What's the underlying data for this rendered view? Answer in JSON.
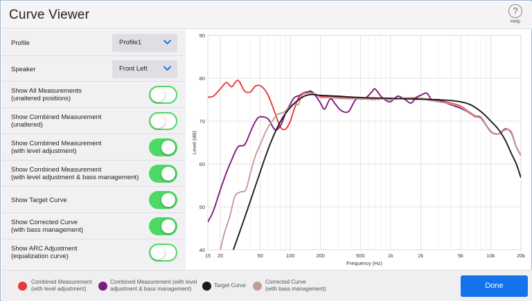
{
  "window": {
    "title": "Curve Viewer",
    "help_icon": "?",
    "help_label": "Help"
  },
  "settings": {
    "profile": {
      "label": "Profile",
      "value": "Profile1"
    },
    "speaker": {
      "label": "Speaker",
      "value": "Front Left"
    },
    "toggles": [
      {
        "line1": "Show All Measurements",
        "line2": "(unaltered  positions)",
        "on": false
      },
      {
        "line1": "Show Combined Measurement",
        "line2": "(unaltered)",
        "on": false
      },
      {
        "line1": "Show Combined Measurement",
        "line2": "(with level adjustment)",
        "on": true
      },
      {
        "line1": "Show Combined Measurement",
        "line2": "(with level adjustment & bass management)",
        "on": true
      },
      {
        "line1": "Show Target Curve",
        "line2": "",
        "on": true
      },
      {
        "line1": "Show Corrected Curve",
        "line2": "(with bass management)",
        "on": true
      },
      {
        "line1": "Show ARC Adjustment",
        "line2": "(equalization curve)",
        "on": false
      }
    ]
  },
  "colors": {
    "accent": "#1273ea",
    "toggle_on": "#4cd964",
    "red": "#e8383d",
    "purple": "#7d1b7e",
    "black": "#1a1a1a",
    "tan": "#c49a97"
  },
  "legend": [
    {
      "line1": "Combined Measurement",
      "line2": "(with level adjustment)",
      "color": "#e8383d"
    },
    {
      "line1": "Combined Measurement (with level",
      "line2": "adjustment & bass management)",
      "color": "#7d1b7e"
    },
    {
      "line1": "Target Curve",
      "line2": "",
      "color": "#1a1a1a"
    },
    {
      "line1": "Corrected Curve",
      "line2": "(with bass management)",
      "color": "#c49a97"
    }
  ],
  "done_label": "Done",
  "chart_data": {
    "type": "line",
    "xlabel": "Frequency (Hz)",
    "ylabel": "Level (dB)",
    "xscale": "log",
    "xlim": [
      15,
      20000
    ],
    "ylim": [
      40,
      90
    ],
    "grid": true,
    "x_ticks": [
      {
        "value": 15,
        "label": "15"
      },
      {
        "value": 20,
        "label": "20"
      },
      {
        "value": 50,
        "label": "50"
      },
      {
        "value": 100,
        "label": "100"
      },
      {
        "value": 200,
        "label": "200"
      },
      {
        "value": 500,
        "label": "500"
      },
      {
        "value": 1000,
        "label": "1k"
      },
      {
        "value": 2000,
        "label": "2k"
      },
      {
        "value": 5000,
        "label": "5k"
      },
      {
        "value": 10000,
        "label": "10k"
      },
      {
        "value": 20000,
        "label": "20k"
      }
    ],
    "y_ticks": [
      40,
      50,
      60,
      70,
      80,
      90
    ],
    "series": [
      {
        "name": "Combined Measurement (with level adjustment)",
        "color": "#e8383d",
        "points": [
          [
            15,
            75.6
          ],
          [
            17,
            75.8
          ],
          [
            20,
            77.5
          ],
          [
            23,
            79
          ],
          [
            26,
            78
          ],
          [
            30,
            79.5
          ],
          [
            35,
            77
          ],
          [
            40,
            76.8
          ],
          [
            45,
            78.2
          ],
          [
            52,
            78
          ],
          [
            60,
            76
          ],
          [
            70,
            72
          ],
          [
            80,
            68.5
          ],
          [
            90,
            68.2
          ],
          [
            100,
            70
          ],
          [
            110,
            73
          ],
          [
            125,
            76
          ],
          [
            150,
            76.8
          ],
          [
            200,
            75.8
          ],
          [
            250,
            75.7
          ],
          [
            300,
            75.5
          ],
          [
            400,
            75.3
          ],
          [
            500,
            75.3
          ],
          [
            600,
            75.2
          ],
          [
            700,
            75.1
          ],
          [
            850,
            75.2
          ],
          [
            1000,
            75
          ],
          [
            1200,
            75.2
          ],
          [
            1500,
            75.4
          ],
          [
            2000,
            75.3
          ],
          [
            2500,
            75
          ],
          [
            3000,
            74.8
          ],
          [
            4000,
            74.2
          ],
          [
            5000,
            73.5
          ],
          [
            6000,
            72.2
          ],
          [
            7000,
            71.2
          ],
          [
            8000,
            70.8
          ],
          [
            10000,
            67.5
          ],
          [
            12000,
            67
          ],
          [
            14000,
            68
          ],
          [
            16000,
            67.5
          ],
          [
            18000,
            64
          ],
          [
            20000,
            62
          ]
        ]
      },
      {
        "name": "Combined Measurement (with level adjustment & bass management)",
        "color": "#7d1b7e",
        "points": [
          [
            15,
            46.5
          ],
          [
            17,
            49
          ],
          [
            20,
            54
          ],
          [
            23,
            58
          ],
          [
            26,
            61
          ],
          [
            30,
            64
          ],
          [
            35,
            64.5
          ],
          [
            40,
            67.5
          ],
          [
            45,
            70
          ],
          [
            50,
            71
          ],
          [
            60,
            70.5
          ],
          [
            70,
            68
          ],
          [
            80,
            69
          ],
          [
            90,
            72
          ],
          [
            100,
            74
          ],
          [
            110,
            75.5
          ],
          [
            125,
            76
          ],
          [
            140,
            76.5
          ],
          [
            160,
            77
          ],
          [
            180,
            75.8
          ],
          [
            200,
            74.2
          ],
          [
            220,
            72.8
          ],
          [
            250,
            75.2
          ],
          [
            280,
            74
          ],
          [
            320,
            72.5
          ],
          [
            380,
            72.2
          ],
          [
            450,
            75
          ],
          [
            550,
            75.2
          ],
          [
            650,
            76.8
          ],
          [
            700,
            77.5
          ],
          [
            800,
            75.8
          ],
          [
            900,
            74.8
          ],
          [
            1000,
            74.5
          ],
          [
            1100,
            75.3
          ],
          [
            1200,
            75.8
          ],
          [
            1400,
            75
          ],
          [
            1600,
            74.2
          ],
          [
            1800,
            75.5
          ],
          [
            2000,
            76
          ],
          [
            2300,
            76.5
          ],
          [
            2600,
            74.8
          ],
          [
            3000,
            75
          ],
          [
            3500,
            74.3
          ],
          [
            4000,
            73.8
          ],
          [
            5000,
            73
          ],
          [
            6000,
            72
          ],
          [
            7000,
            71
          ],
          [
            8000,
            70.7
          ],
          [
            10000,
            67.6
          ],
          [
            12000,
            67
          ],
          [
            14000,
            68.2
          ],
          [
            16000,
            67.3
          ],
          [
            18000,
            64
          ],
          [
            20000,
            62
          ]
        ]
      },
      {
        "name": "Target Curve",
        "color": "#1a1a1a",
        "points": [
          [
            27,
            40
          ],
          [
            35,
            47.5
          ],
          [
            45,
            55
          ],
          [
            55,
            61
          ],
          [
            65,
            65.5
          ],
          [
            80,
            70
          ],
          [
            100,
            73.2
          ],
          [
            130,
            75.5
          ],
          [
            160,
            76.2
          ],
          [
            200,
            76
          ],
          [
            300,
            75.8
          ],
          [
            500,
            75.5
          ],
          [
            1000,
            75.3
          ],
          [
            2000,
            75.1
          ],
          [
            4000,
            74.8
          ],
          [
            6000,
            74
          ],
          [
            8000,
            72.2
          ],
          [
            10000,
            70
          ],
          [
            12000,
            68
          ],
          [
            14000,
            65.5
          ],
          [
            16000,
            62.5
          ],
          [
            18000,
            60
          ],
          [
            20000,
            56.8
          ]
        ]
      },
      {
        "name": "Corrected Curve (with bass management)",
        "color": "#c49a97",
        "points": [
          [
            20,
            40
          ],
          [
            22,
            44
          ],
          [
            25,
            48
          ],
          [
            28,
            52.5
          ],
          [
            32,
            53.5
          ],
          [
            36,
            54
          ],
          [
            40,
            58
          ],
          [
            45,
            62
          ],
          [
            50,
            64.5
          ],
          [
            58,
            68
          ],
          [
            66,
            70
          ],
          [
            74,
            71.5
          ],
          [
            85,
            72
          ],
          [
            95,
            73
          ],
          [
            110,
            74.2
          ],
          [
            120,
            73.8
          ],
          [
            130,
            76
          ],
          [
            150,
            76.5
          ],
          [
            180,
            76.3
          ],
          [
            200,
            75.5
          ],
          [
            250,
            75.5
          ],
          [
            300,
            75.3
          ],
          [
            400,
            75.2
          ],
          [
            500,
            75.2
          ],
          [
            600,
            75.1
          ],
          [
            700,
            75
          ],
          [
            850,
            75.2
          ],
          [
            1000,
            75
          ],
          [
            1200,
            75.2
          ],
          [
            1500,
            75.4
          ],
          [
            1800,
            75
          ],
          [
            2000,
            75.3
          ],
          [
            2500,
            74.8
          ],
          [
            3000,
            74.5
          ],
          [
            4000,
            74
          ],
          [
            5000,
            73.3
          ],
          [
            6000,
            72
          ],
          [
            7000,
            71
          ],
          [
            8000,
            70.6
          ],
          [
            10000,
            67.5
          ],
          [
            12000,
            67
          ],
          [
            14000,
            68
          ],
          [
            16000,
            67.5
          ],
          [
            18000,
            64
          ],
          [
            20000,
            62
          ]
        ]
      }
    ]
  }
}
